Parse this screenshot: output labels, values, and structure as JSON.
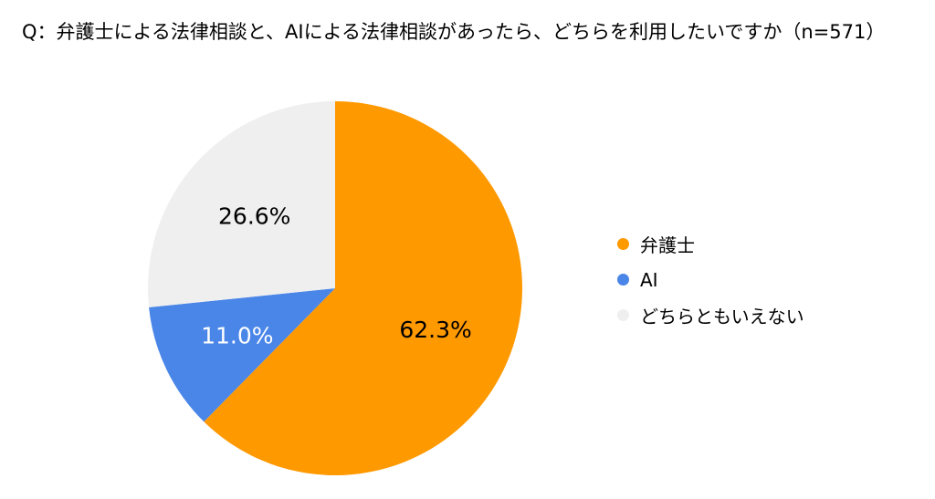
{
  "chart_data": {
    "type": "pie",
    "title": "Q：弁護士による法律相談と、AIによる法律相談があったら、どちらを利用したいですか（n=571）",
    "categories": [
      "弁護士",
      "AI",
      "どちらともいえない"
    ],
    "values": [
      62.3,
      11.0,
      26.6
    ],
    "value_labels": [
      "62.3%",
      "11.0%",
      "26.6%"
    ],
    "colors": [
      "#FF9900",
      "#4A86E8",
      "#EFEFEF"
    ],
    "label_colors": [
      "#000000",
      "#FFFFFF",
      "#000000"
    ],
    "legend_position": "right"
  }
}
